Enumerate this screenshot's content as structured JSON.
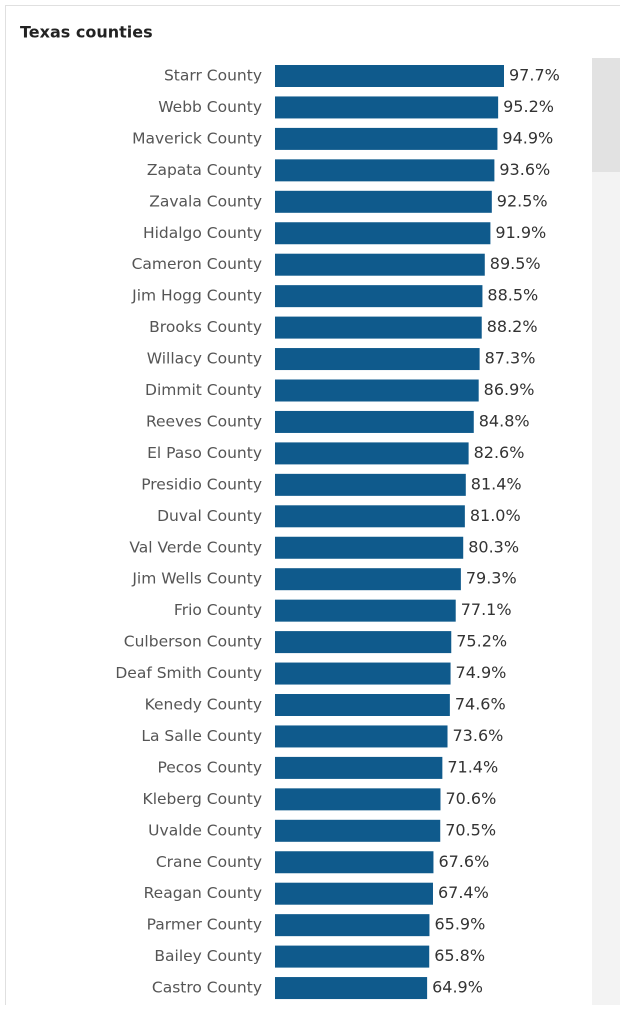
{
  "chart_data": {
    "type": "bar",
    "orientation": "horizontal",
    "title": "Texas counties",
    "color": "#0f5a8c",
    "categories": [
      "Starr County",
      "Webb County",
      "Maverick County",
      "Zapata County",
      "Zavala County",
      "Hidalgo County",
      "Cameron County",
      "Jim Hogg County",
      "Brooks County",
      "Willacy County",
      "Dimmit County",
      "Reeves County",
      "El Paso County",
      "Presidio County",
      "Duval County",
      "Val Verde County",
      "Jim Wells County",
      "Frio County",
      "Culberson County",
      "Deaf Smith County",
      "Kenedy County",
      "La Salle County",
      "Pecos County",
      "Kleberg County",
      "Uvalde County",
      "Crane County",
      "Reagan County",
      "Parmer County",
      "Bailey County",
      "Castro County"
    ],
    "values": [
      97.7,
      95.2,
      94.9,
      93.6,
      92.5,
      91.9,
      89.5,
      88.5,
      88.2,
      87.3,
      86.9,
      84.8,
      82.6,
      81.4,
      81.0,
      80.3,
      79.3,
      77.1,
      75.2,
      74.9,
      74.6,
      73.6,
      71.4,
      70.6,
      70.5,
      67.6,
      67.4,
      65.9,
      65.8,
      64.9
    ],
    "value_labels": [
      "97.7%",
      "95.2%",
      "94.9%",
      "93.6%",
      "92.5%",
      "91.9%",
      "89.5%",
      "88.5%",
      "88.2%",
      "87.3%",
      "86.9%",
      "84.8%",
      "82.6%",
      "81.4%",
      "81.0%",
      "80.3%",
      "79.3%",
      "77.1%",
      "75.2%",
      "74.9%",
      "74.6%",
      "73.6%",
      "71.4%",
      "70.6%",
      "70.5%",
      "67.6%",
      "67.4%",
      "65.9%",
      "65.8%",
      "64.9%"
    ]
  }
}
